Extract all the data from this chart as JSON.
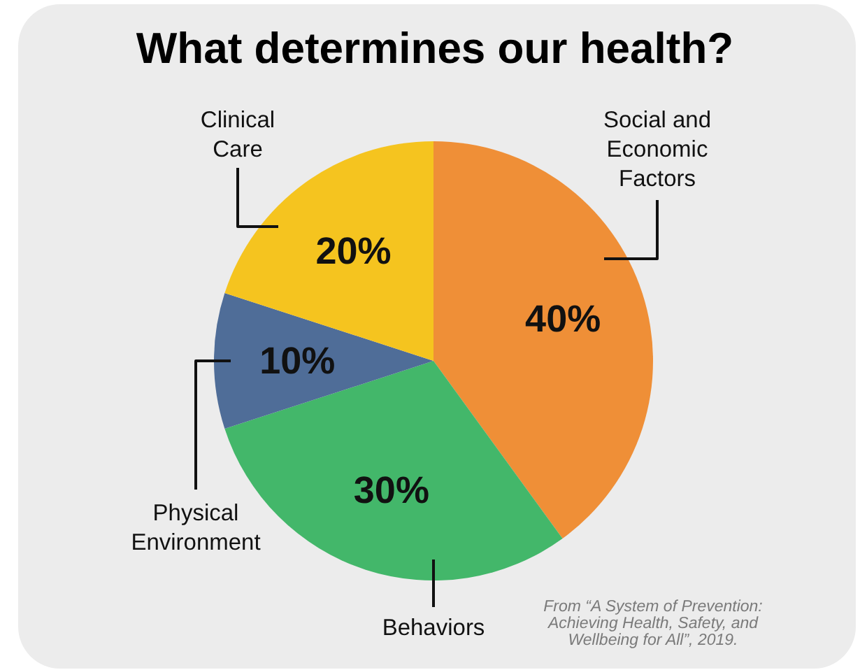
{
  "chart_data": {
    "type": "pie",
    "title": "What determines our health?",
    "categories": [
      "Social and Economic Factors",
      "Behaviors",
      "Physical Environment",
      "Clinical Care"
    ],
    "values": [
      40,
      30,
      10,
      20
    ],
    "colors": [
      "#ef8f37",
      "#43b76a",
      "#4f6d98",
      "#f5c41f"
    ],
    "value_labels": [
      "40%",
      "30%",
      "10%",
      "20%"
    ],
    "annotations": [
      "From “A System of Prevention: Achieving Health, Safety, and Wellbeing for All”, 2019."
    ]
  }
}
